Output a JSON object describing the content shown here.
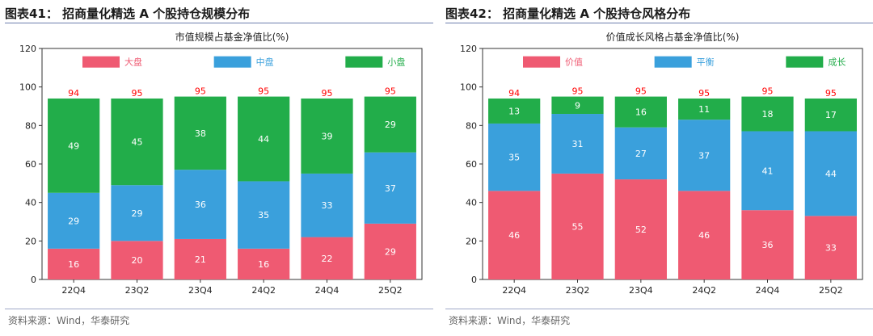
{
  "figures": [
    {
      "figure_title": "图表41：  招商量化精选 A 个股持仓规模分布",
      "source": "资料来源：Wind，华泰研究"
    },
    {
      "figure_title": "图表42：  招商量化精选 A 个股持仓风格分布",
      "source": "资料来源：Wind，华泰研究"
    }
  ],
  "colors": {
    "red": "#ef5a72",
    "blue": "#3aa0dc",
    "green": "#22ad4a",
    "total_label": "#ff0000"
  },
  "chart_data": [
    {
      "type": "bar",
      "stacked": true,
      "title": "市值规模占基金净值比(%)",
      "categories": [
        "22Q4",
        "23Q2",
        "23Q4",
        "24Q2",
        "24Q4",
        "25Q2"
      ],
      "series": [
        {
          "name": "大盘",
          "values": [
            16,
            20,
            21,
            16,
            22,
            29
          ]
        },
        {
          "name": "中盘",
          "values": [
            29,
            29,
            36,
            35,
            33,
            37
          ]
        },
        {
          "name": "小盘",
          "values": [
            49,
            45,
            38,
            44,
            39,
            29
          ]
        }
      ],
      "totals": [
        94,
        95,
        95,
        95,
        95,
        95
      ],
      "ylim": [
        0,
        120
      ],
      "yticks": [
        0,
        20,
        40,
        60,
        80,
        100,
        120
      ],
      "legend_position": "top",
      "grid": false
    },
    {
      "type": "bar",
      "stacked": true,
      "title": "价值成长风格占基金净值比(%)",
      "categories": [
        "22Q4",
        "23Q2",
        "23Q4",
        "24Q2",
        "24Q4",
        "25Q2"
      ],
      "series": [
        {
          "name": "价值",
          "values": [
            46,
            55,
            52,
            46,
            36,
            33
          ]
        },
        {
          "name": "平衡",
          "values": [
            35,
            31,
            27,
            37,
            41,
            44
          ]
        },
        {
          "name": "成长",
          "values": [
            13,
            9,
            16,
            11,
            18,
            17
          ]
        }
      ],
      "totals": [
        94,
        95,
        95,
        95,
        95,
        95
      ],
      "ylim": [
        0,
        120
      ],
      "yticks": [
        0,
        20,
        40,
        60,
        80,
        100,
        120
      ],
      "legend_position": "top",
      "grid": false
    }
  ]
}
